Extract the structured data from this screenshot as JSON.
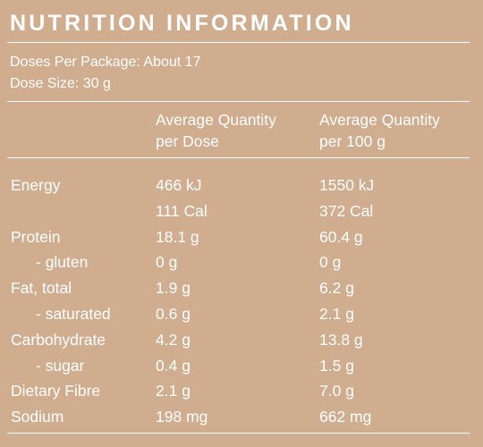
{
  "panel": {
    "title": "NUTRITION INFORMATION",
    "doses_per_package": "Doses Per Package: About 17",
    "dose_size": "Dose Size: 30 g"
  },
  "columns": {
    "per_dose": [
      "Average Quantity",
      "per Dose"
    ],
    "per_100g": [
      "Average Quantity",
      "per 100 g"
    ]
  },
  "rows": [
    {
      "label": "Energy",
      "per_dose": "466 kJ",
      "per_100g": "1550 kJ",
      "sub": false
    },
    {
      "label": "",
      "per_dose": "111 Cal",
      "per_100g": "372 Cal",
      "sub": false
    },
    {
      "label": "Protein",
      "per_dose": "18.1 g",
      "per_100g": "60.4 g",
      "sub": false
    },
    {
      "label": "- gluten",
      "per_dose": "0 g",
      "per_100g": "0 g",
      "sub": true
    },
    {
      "label": "Fat, total",
      "per_dose": "1.9 g",
      "per_100g": "6.2 g",
      "sub": false
    },
    {
      "label": "- saturated",
      "per_dose": "0.6 g",
      "per_100g": "2.1 g",
      "sub": true
    },
    {
      "label": "Carbohydrate",
      "per_dose": "4.2 g",
      "per_100g": "13.8 g",
      "sub": false
    },
    {
      "label": "- sugar",
      "per_dose": "0.4 g",
      "per_100g": "1.5 g",
      "sub": true
    },
    {
      "label": "Dietary Fibre",
      "per_dose": "2.1 g",
      "per_100g": "7.0 g",
      "sub": false
    },
    {
      "label": "Sodium",
      "per_dose": "198 mg",
      "per_100g": "662 mg",
      "sub": false
    }
  ],
  "colors": {
    "background": "#d1ad8f",
    "text": "#ffffff"
  }
}
